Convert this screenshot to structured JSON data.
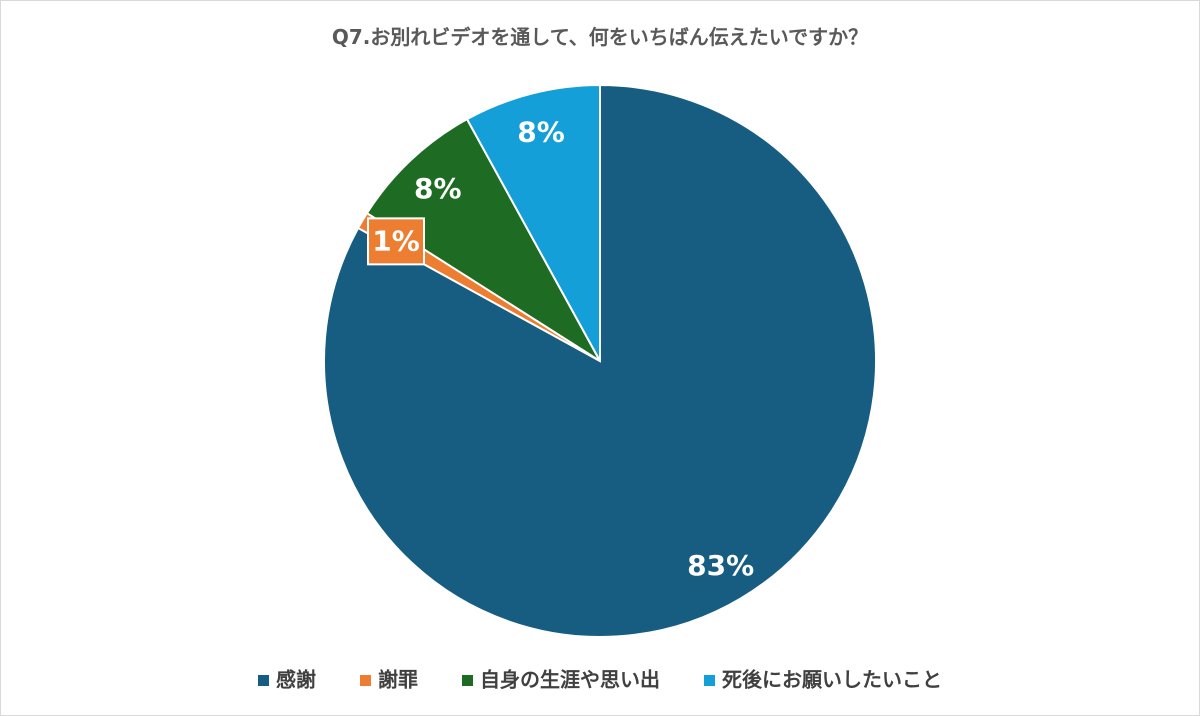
{
  "chart_data": {
    "type": "pie",
    "title": "Q7.お別れビデオを通して、何をいちばん伝えたいですか？",
    "categories": [
      "感謝",
      "謝罪",
      "自身の生涯や思い出",
      "死後にお願いしたいこと"
    ],
    "values": [
      83,
      1,
      8,
      8
    ],
    "value_labels": [
      "83%",
      "1%",
      "8%",
      "8%"
    ],
    "colors": [
      "#175d82",
      "#ed7d31",
      "#1e6b23",
      "#159fd9"
    ],
    "legend": "bottom"
  }
}
